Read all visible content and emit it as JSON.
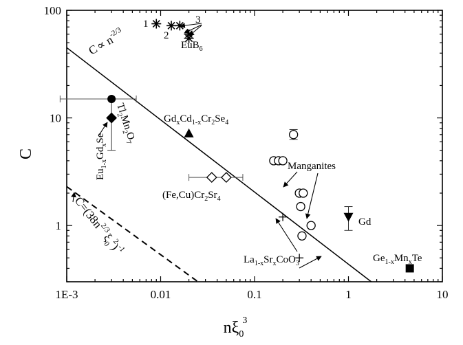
{
  "chart_data": {
    "type": "scatter",
    "title": "",
    "xlabel": "nξ0^3",
    "ylabel": "C",
    "xscale": "log",
    "yscale": "log",
    "xlim": [
      0.001,
      10
    ],
    "ylim": [
      0.3,
      100
    ],
    "xticks": [
      0.001,
      0.01,
      0.1,
      1,
      10
    ],
    "xticklabels": [
      "1E-3",
      "0.01",
      "0.1",
      "1",
      "10"
    ],
    "yticks": [
      1,
      10,
      100
    ],
    "yticklabels": [
      "1",
      "10",
      "100"
    ],
    "grid": false,
    "legend": "none",
    "lines": [
      {
        "label": "C ∝ n^-2/3",
        "style": "solid",
        "x": [
          0.001,
          1.75
        ],
        "y": [
          45,
          0.3
        ]
      },
      {
        "label": "C=(38n^2/3 ξ0^2)^-1",
        "style": "dashed",
        "x": [
          0.001,
          0.025
        ],
        "y": [
          2.3,
          0.3
        ]
      }
    ],
    "series": [
      {
        "name": "EuB6",
        "marker": "asterisk",
        "x": [
          0.009,
          0.013,
          0.016,
          0.02,
          0.02
        ],
        "y": [
          75,
          72,
          72,
          60,
          55
        ]
      },
      {
        "name": "Tl2Mn2O7",
        "marker": "filled-circle",
        "x": [
          0.003
        ],
        "y": [
          15
        ],
        "xerr_range": [
          0.00085,
          0.0055
        ]
      },
      {
        "name": "Eu1-xGdxSe",
        "marker": "filled-diamond",
        "x": [
          0.003
        ],
        "y": [
          10
        ],
        "yerr_range": [
          5,
          15
        ]
      },
      {
        "name": "GdxCd1-xCr2Se4",
        "marker": "filled-triangle-up",
        "x": [
          0.02
        ],
        "y": [
          7.2
        ]
      },
      {
        "name": "(Fe,Cu)Cr2Sr4",
        "marker": "open-diamond",
        "x": [
          0.035,
          0.05
        ],
        "y": [
          2.8,
          2.8
        ],
        "xerr_range": [
          0.02,
          0.075
        ]
      },
      {
        "name": "Manganites",
        "marker": "open-circle",
        "x": [
          0.26,
          0.16,
          0.18,
          0.2,
          0.3,
          0.33,
          0.31,
          0.4,
          0.32
        ],
        "y": [
          7,
          4,
          4,
          4,
          2,
          2,
          1.5,
          1,
          0.8
        ],
        "yerr_point": {
          "x": 0.26,
          "y": 7,
          "range": [
            6.3,
            7.8
          ]
        }
      },
      {
        "name": "Gd",
        "marker": "filled-triangle-down",
        "x": [
          1.0
        ],
        "y": [
          1.2
        ],
        "yerr_range": [
          0.9,
          1.5
        ]
      },
      {
        "name": "La1-xSrxCoO3",
        "marker": "plus",
        "x": [
          0.2,
          0.3
        ],
        "y": [
          1.2,
          0.5
        ]
      },
      {
        "name": "Ge1-xMnxTe",
        "marker": "filled-square",
        "x": [
          4.5
        ],
        "y": [
          0.4
        ]
      }
    ],
    "annotations": {
      "line_label": {
        "text_a": "C",
        "text_b": "∝ n",
        "sup": "-2/3"
      },
      "dashed_label": {
        "text_a": "C=(38n",
        "sup_a": "2/3",
        "text_b": "ξ",
        "sub_b": "0",
        "sup_b": "2",
        "text_c": ")",
        "sup_c": "-1"
      },
      "euB6": {
        "base": "EuB",
        "sub": "6"
      },
      "n1": "1",
      "n2": "2",
      "n3": "3",
      "tl": {
        "a": "Tl",
        "s1": "2",
        "b": "Mn",
        "s2": "2",
        "c": "O",
        "s3": "7"
      },
      "eu": {
        "a": "Eu",
        "s1": "1-x",
        "b": "Gd",
        "s2": "x",
        "c": "Se"
      },
      "gdcd": {
        "a": "Gd",
        "s1": "x",
        "b": "Cd",
        "s2": "1-x",
        "c": "Cr",
        "s3": "2",
        "d": "Se",
        "s4": "4"
      },
      "fecu": {
        "a": "(Fe,Cu)Cr",
        "s1": "2",
        "b": "Sr",
        "s2": "4"
      },
      "manganites": "Manganites",
      "gd": "Gd",
      "la": {
        "a": "La",
        "s1": "1-x",
        "b": "Sr",
        "s2": "x",
        "c": "CoO",
        "s3": "3"
      },
      "ge": {
        "a": "Ge",
        "s1": "1-x",
        "b": "Mn",
        "s2": "x",
        "c": "Te"
      }
    },
    "axis_titles": {
      "x_base": "nξ",
      "x_sub": "0",
      "x_sup": "3",
      "y": "C"
    }
  }
}
